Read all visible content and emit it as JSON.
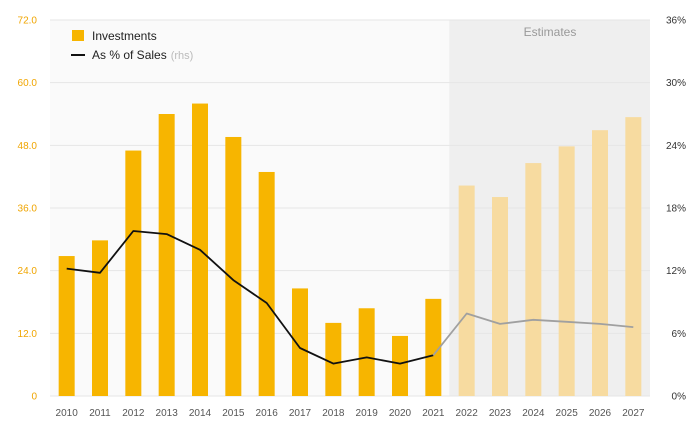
{
  "chart_data": {
    "type": "bar",
    "categories": [
      "2010",
      "2011",
      "2012",
      "2013",
      "2014",
      "2015",
      "2016",
      "2017",
      "2018",
      "2019",
      "2020",
      "2021",
      "2022",
      "2023",
      "2024",
      "2025",
      "2026",
      "2027"
    ],
    "series": [
      {
        "name": "Investments",
        "type": "bar",
        "axis": "left",
        "values": [
          26.8,
          29.8,
          47.0,
          54.0,
          56.0,
          49.6,
          42.9,
          20.6,
          14.0,
          16.8,
          11.5,
          18.6,
          40.3,
          38.1,
          44.6,
          47.8,
          50.9,
          53.4
        ]
      },
      {
        "name": "As % of Sales",
        "name_suffix": "(rhs)",
        "type": "line",
        "axis": "right",
        "values": [
          12.2,
          11.8,
          15.8,
          15.5,
          14.0,
          11.1,
          8.9,
          4.6,
          3.1,
          3.7,
          3.1,
          3.9,
          7.9,
          6.9,
          7.3,
          7.1,
          6.9,
          6.6
        ]
      }
    ],
    "estimate_start_index": 12,
    "estimate_label": "Estimates",
    "ylim_left": [
      0,
      72
    ],
    "ylim_right": [
      0,
      36
    ],
    "yticks_left": [
      "0",
      "12.0",
      "24.0",
      "36.0",
      "48.0",
      "60.0",
      "72.0"
    ],
    "yticks_right": [
      "0%",
      "6%",
      "12%",
      "18%",
      "24%",
      "30%",
      "36%"
    ],
    "grid": true,
    "legend_position": "top-left",
    "colors": {
      "bar": "#f7b500",
      "bar_estimate": "#f7dba0",
      "line": "#111111",
      "line_estimate": "#a0a0a0",
      "estimate_shade": "#efefef",
      "plot_bg": "#fafafa",
      "grid": "#e6e6e6",
      "left_tick": "#f0a500"
    }
  }
}
